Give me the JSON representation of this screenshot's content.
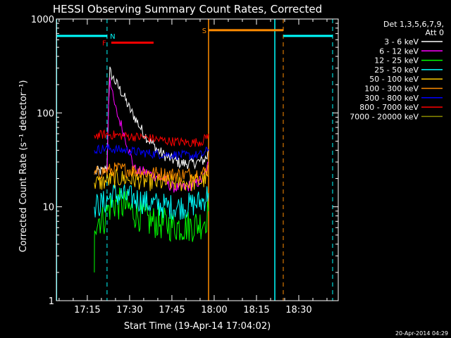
{
  "chart_data": {
    "type": "line",
    "title": "HESSI Observing Summary Count Rates, Corrected",
    "xlabel": "Start Time (19-Apr-14 17:04:02)",
    "ylabel": "Corrected Count Rate (s⁻¹ detector⁻¹)",
    "yscale": "log",
    "ylim": [
      1,
      1000
    ],
    "xlim_minutes_since_1700": [
      4.03,
      104.0
    ],
    "xticks": [
      {
        "label": "17:15",
        "min": 15
      },
      {
        "label": "17:30",
        "min": 30
      },
      {
        "label": "17:45",
        "min": 45
      },
      {
        "label": "18:00",
        "min": 60
      },
      {
        "label": "18:15",
        "min": 75
      },
      {
        "label": "18:30",
        "min": 90
      }
    ],
    "yticks": [
      {
        "label": "1",
        "val": 1
      },
      {
        "label": "10",
        "val": 10
      },
      {
        "label": "100",
        "val": 100
      },
      {
        "label": "1000",
        "val": 1000
      }
    ],
    "legend": {
      "header": [
        "Det 1,3,5,6,7,9,",
        "Att 0"
      ],
      "placement": "right"
    },
    "series": [
      {
        "name": "3 - 6 keV",
        "color": "#ffffff",
        "points": [
          [
            17.5,
            23
          ],
          [
            19,
            24
          ],
          [
            21,
            24
          ],
          [
            22,
            28
          ],
          [
            22.5,
            120
          ],
          [
            23,
            280
          ],
          [
            24,
            240
          ],
          [
            26,
            190
          ],
          [
            28,
            150
          ],
          [
            30,
            110
          ],
          [
            32,
            88
          ],
          [
            34,
            68
          ],
          [
            36,
            55
          ],
          [
            38,
            47
          ],
          [
            40,
            40
          ],
          [
            42,
            36
          ],
          [
            44,
            33
          ],
          [
            46,
            31
          ],
          [
            48,
            29
          ],
          [
            50,
            29
          ],
          [
            52,
            29
          ],
          [
            54,
            30
          ],
          [
            56,
            31
          ],
          [
            57.5,
            34
          ],
          [
            58,
            40
          ]
        ]
      },
      {
        "name": "6 - 12 keV",
        "color": "#ff00ff",
        "points": [
          [
            22,
            22
          ],
          [
            22.5,
            120
          ],
          [
            23,
            250
          ],
          [
            24,
            150
          ],
          [
            25,
            110
          ],
          [
            26,
            90
          ],
          [
            27,
            75
          ],
          [
            28,
            60
          ],
          [
            29,
            48
          ],
          [
            30,
            38
          ],
          [
            31,
            30
          ],
          [
            32,
            25
          ],
          [
            33,
            23
          ],
          [
            34,
            24
          ],
          [
            36,
            23
          ],
          [
            38,
            22
          ],
          [
            40,
            21
          ],
          [
            42,
            20
          ],
          [
            44,
            17
          ],
          [
            46,
            16
          ],
          [
            48,
            16
          ],
          [
            50,
            16
          ],
          [
            52,
            17
          ],
          [
            54,
            18
          ],
          [
            56,
            20
          ],
          [
            57.5,
            25
          ],
          [
            58,
            30
          ]
        ]
      },
      {
        "name": "12 - 25 keV",
        "color": "#00ff00",
        "points": [
          [
            17.5,
            2
          ],
          [
            17.6,
            7
          ],
          [
            19,
            7.5
          ],
          [
            21,
            7.5
          ],
          [
            22,
            9
          ],
          [
            23,
            10
          ],
          [
            25,
            11
          ],
          [
            27,
            10.5
          ],
          [
            29,
            10
          ],
          [
            31,
            9
          ],
          [
            34,
            8
          ],
          [
            37,
            7
          ],
          [
            40,
            6.8
          ],
          [
            43,
            6.5
          ],
          [
            46,
            6.3
          ],
          [
            49,
            6.2
          ],
          [
            52,
            6.3
          ],
          [
            55,
            6.6
          ],
          [
            57,
            7.5
          ],
          [
            58,
            9
          ]
        ]
      },
      {
        "name": "25 - 50 keV",
        "color": "#00ffff",
        "points": [
          [
            17.5,
            10
          ],
          [
            19,
            10.5
          ],
          [
            21,
            11
          ],
          [
            22,
            12
          ],
          [
            24,
            13.5
          ],
          [
            27,
            13
          ],
          [
            30,
            12.5
          ],
          [
            33,
            12
          ],
          [
            36,
            11
          ],
          [
            40,
            10.5
          ],
          [
            44,
            10
          ],
          [
            48,
            10
          ],
          [
            52,
            10.5
          ],
          [
            56,
            11.5
          ],
          [
            58,
            14
          ]
        ]
      },
      {
        "name": "50 - 100 keV",
        "color": "#ffcc00",
        "points": [
          [
            17.5,
            18
          ],
          [
            19,
            18
          ],
          [
            21,
            18.5
          ],
          [
            22,
            19
          ],
          [
            25,
            20
          ],
          [
            28,
            20
          ],
          [
            31,
            19.5
          ],
          [
            34,
            19
          ],
          [
            37,
            18.5
          ],
          [
            40,
            18
          ],
          [
            44,
            18
          ],
          [
            48,
            18
          ],
          [
            52,
            18
          ],
          [
            56,
            19
          ],
          [
            58,
            21
          ]
        ]
      },
      {
        "name": "100 - 300 keV",
        "color": "#ff8c00",
        "points": [
          [
            17.5,
            22
          ],
          [
            19,
            23
          ],
          [
            21,
            24
          ],
          [
            22,
            24
          ],
          [
            25,
            25
          ],
          [
            28,
            25
          ],
          [
            31,
            24.5
          ],
          [
            34,
            24
          ],
          [
            37,
            23
          ],
          [
            40,
            22.5
          ],
          [
            44,
            22
          ],
          [
            48,
            22
          ],
          [
            52,
            22
          ],
          [
            56,
            23
          ],
          [
            58,
            26
          ]
        ]
      },
      {
        "name": "300 - 800 keV",
        "color": "#0000ff",
        "points": [
          [
            17.5,
            40
          ],
          [
            19,
            41
          ],
          [
            21,
            42
          ],
          [
            22,
            42
          ],
          [
            25,
            41
          ],
          [
            28,
            40
          ],
          [
            31,
            39
          ],
          [
            34,
            38
          ],
          [
            37,
            37
          ],
          [
            40,
            36.5
          ],
          [
            44,
            36
          ],
          [
            48,
            35.5
          ],
          [
            52,
            35
          ],
          [
            56,
            36
          ],
          [
            58,
            41
          ]
        ]
      },
      {
        "name": "800 - 7000 keV",
        "color": "#ff0000",
        "points": [
          [
            17.5,
            58
          ],
          [
            19,
            58
          ],
          [
            21,
            59
          ],
          [
            22,
            59
          ],
          [
            25,
            58
          ],
          [
            28,
            57
          ],
          [
            31,
            56
          ],
          [
            34,
            55
          ],
          [
            37,
            54
          ],
          [
            40,
            52
          ],
          [
            44,
            50
          ],
          [
            48,
            49
          ],
          [
            52,
            48
          ],
          [
            56,
            50
          ],
          [
            58,
            60
          ]
        ]
      },
      {
        "name": "7000 - 20000 keV",
        "color": "#8b8b00",
        "points": []
      }
    ],
    "annotations": [
      {
        "label": "F",
        "color": "#ff0000"
      },
      {
        "label": "N",
        "color": "#00ffff"
      },
      {
        "label": "S",
        "color": "#ff8c00"
      }
    ],
    "flag_bars": [
      {
        "color": "#00ffff",
        "from": 4.03,
        "to": 22.0,
        "y": 660
      },
      {
        "color": "#ff0000",
        "from": 23.5,
        "to": 38.5,
        "y": 560
      },
      {
        "color": "#ff8c00",
        "from": 58.0,
        "to": 84.5,
        "y": 760
      },
      {
        "color": "#00ffff",
        "from": 84.5,
        "to": 102.0,
        "y": 660
      }
    ],
    "solid_vlines": [
      {
        "color": "#00ffff",
        "min": 4.1
      },
      {
        "color": "#ff8c00",
        "min": 58.0
      },
      {
        "color": "#00ffff",
        "min": 81.5
      }
    ],
    "dashed_vlines": [
      {
        "color": "#00ffff",
        "min": 22.0
      },
      {
        "color": "#ff8c00",
        "min": 84.5
      },
      {
        "color": "#00ffff",
        "min": 102.0
      }
    ],
    "footer": "20-Apr-2014 04:29"
  }
}
